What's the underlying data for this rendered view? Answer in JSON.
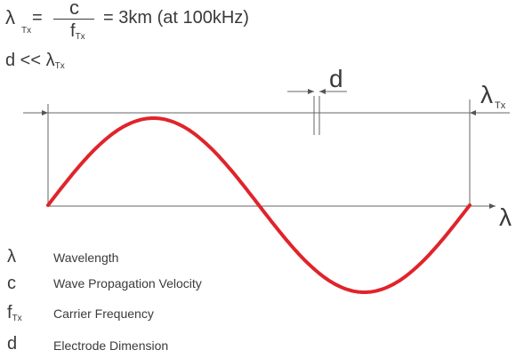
{
  "formula": {
    "lambda": "λ",
    "lambda_sub": "Tx",
    "eq1": "=",
    "numerator": "c",
    "denominator": "f",
    "denominator_sub": "Tx",
    "result": "= 3km (at 100kHz)"
  },
  "condition": {
    "text": "d << λ",
    "sub": "Tx"
  },
  "diagram": {
    "d_label": "d",
    "lambda_label": "λ",
    "lambda_sub": "Tx",
    "axis_label": "λ",
    "wave_color": "#e0242b",
    "line_color": "#555555"
  },
  "legend": [
    {
      "symbol": "λ",
      "sub": "",
      "text": "Wavelength"
    },
    {
      "symbol": "c",
      "sub": "",
      "text": "Wave Propagation Velocity"
    },
    {
      "symbol": "f",
      "sub": "Tx",
      "text": "Carrier Frequency"
    },
    {
      "symbol": "d",
      "sub": "",
      "text": "Electrode Dimension"
    }
  ]
}
